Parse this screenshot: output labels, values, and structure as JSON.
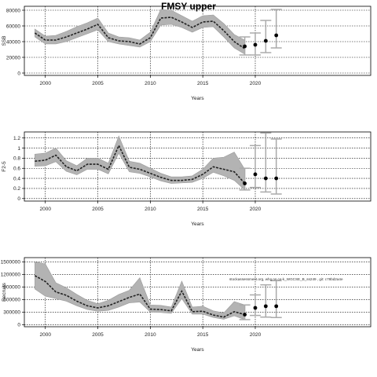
{
  "title": "FMSY upper",
  "note": "stockassessment.org, whg.ns.ce-k_WGCSE_B_ss249 , git: c78bd2a4e",
  "colors": {
    "band": "#b3b3b3",
    "band_edge": "#9a9a9a",
    "line": "#222222",
    "forecast": "#aaaaaa",
    "point": "#000000",
    "grid": "#000000"
  },
  "chart_data": [
    {
      "id": "ssb",
      "type": "line",
      "ylabel": "SSB",
      "xlabel": "Years",
      "xlim": [
        1998,
        2031
      ],
      "ylim": [
        -3000,
        85000
      ],
      "xticks": [
        2000,
        2005,
        2010,
        2015,
        2020
      ],
      "yticks": [
        0,
        20000,
        40000,
        60000,
        80000
      ],
      "x": [
        1999,
        2000,
        2001,
        2002,
        2003,
        2004,
        2005,
        2006,
        2007,
        2008,
        2009,
        2010,
        2011,
        2012,
        2013,
        2014,
        2015,
        2016,
        2017,
        2018,
        2019
      ],
      "y": [
        51000,
        42000,
        42000,
        46000,
        51000,
        56000,
        62000,
        45000,
        41000,
        40000,
        37000,
        45000,
        70000,
        71000,
        65000,
        58000,
        65000,
        66000,
        54000,
        40000,
        31000
      ],
      "lower": [
        46000,
        37000,
        37000,
        40000,
        45000,
        50000,
        55000,
        40000,
        37000,
        35000,
        33000,
        40000,
        61000,
        62000,
        58000,
        52000,
        58000,
        59000,
        46000,
        32000,
        24000
      ],
      "upper": [
        56000,
        47000,
        48000,
        53000,
        59000,
        64000,
        70000,
        51000,
        46000,
        45000,
        42000,
        52000,
        81000,
        80000,
        73000,
        66000,
        73000,
        74000,
        63000,
        49000,
        42000
      ],
      "forecast": [
        {
          "x": 2019,
          "y": 34000,
          "lower": 23000,
          "upper": 46000
        },
        {
          "x": 2020,
          "y": 36000,
          "lower": 23000,
          "upper": 51000
        },
        {
          "x": 2021,
          "y": 41000,
          "lower": 26000,
          "upper": 67000
        },
        {
          "x": 2022,
          "y": 48000,
          "lower": 32000,
          "upper": 81000
        }
      ]
    },
    {
      "id": "fbar",
      "type": "line",
      "ylabel": "F2-5",
      "xlabel": "Years",
      "xlim": [
        1998,
        2031
      ],
      "ylim": [
        -0.05,
        1.32
      ],
      "xticks": [
        2000,
        2005,
        2010,
        2015,
        2020
      ],
      "yticks": [
        0.0,
        0.2,
        0.4,
        0.6,
        0.8,
        1.0,
        1.2
      ],
      "x": [
        1999,
        2000,
        2001,
        2002,
        2003,
        2004,
        2005,
        2006,
        2007,
        2008,
        2009,
        2010,
        2011,
        2012,
        2013,
        2014,
        2015,
        2016,
        2017,
        2018,
        2019
      ],
      "y": [
        0.74,
        0.76,
        0.86,
        0.63,
        0.55,
        0.68,
        0.68,
        0.58,
        1.05,
        0.62,
        0.58,
        0.5,
        0.42,
        0.36,
        0.36,
        0.38,
        0.48,
        0.63,
        0.58,
        0.53,
        0.3
      ],
      "lower": [
        0.64,
        0.65,
        0.73,
        0.54,
        0.47,
        0.58,
        0.58,
        0.49,
        0.9,
        0.53,
        0.5,
        0.43,
        0.35,
        0.3,
        0.31,
        0.32,
        0.4,
        0.52,
        0.45,
        0.36,
        0.17
      ],
      "upper": [
        0.88,
        0.9,
        1.0,
        0.75,
        0.65,
        0.8,
        0.8,
        0.7,
        1.24,
        0.74,
        0.7,
        0.6,
        0.5,
        0.43,
        0.43,
        0.45,
        0.58,
        0.8,
        0.82,
        0.92,
        0.58
      ],
      "forecast": [
        {
          "x": 2019,
          "y": 0.3,
          "lower": 0.17,
          "upper": 0.6
        },
        {
          "x": 2020,
          "y": 0.48,
          "lower": 0.22,
          "upper": 1.05
        },
        {
          "x": 2021,
          "y": 0.4,
          "lower": 0.13,
          "upper": 1.3
        },
        {
          "x": 2022,
          "y": 0.4,
          "lower": 0.09,
          "upper": 1.18
        }
      ]
    },
    {
      "id": "recruitment",
      "type": "line",
      "ylabel": "Recruits",
      "xlabel": "Years",
      "xlim": [
        1998,
        2031
      ],
      "ylim": [
        -50000,
        1600000
      ],
      "xticks": [
        2000,
        2005,
        2010,
        2015,
        2020
      ],
      "yticks": [
        0,
        300000,
        600000,
        900000,
        1200000,
        1500000
      ],
      "ytick_labels": [
        "0",
        "300000",
        "600000",
        "900000",
        "1200000",
        "1500000"
      ],
      "x": [
        1999,
        2000,
        2001,
        2002,
        2003,
        2004,
        2005,
        2006,
        2007,
        2008,
        2009,
        2010,
        2011,
        2012,
        2013,
        2014,
        2015,
        2016,
        2017,
        2018,
        2019
      ],
      "y": [
        1170000,
        1030000,
        780000,
        700000,
        560000,
        450000,
        400000,
        450000,
        550000,
        650000,
        730000,
        370000,
        360000,
        330000,
        800000,
        310000,
        320000,
        230000,
        180000,
        310000,
        240000
      ],
      "lower": [
        850000,
        680000,
        620000,
        560000,
        450000,
        360000,
        320000,
        340000,
        420000,
        520000,
        540000,
        300000,
        290000,
        270000,
        620000,
        250000,
        250000,
        170000,
        130000,
        210000,
        120000
      ],
      "upper": [
        1500000,
        1450000,
        1000000,
        880000,
        720000,
        580000,
        500000,
        580000,
        720000,
        820000,
        1120000,
        470000,
        460000,
        420000,
        1040000,
        420000,
        440000,
        330000,
        280000,
        550000,
        470000
      ],
      "forecast": [
        {
          "x": 2019,
          "y": 240000,
          "lower": 120000,
          "upper": 470000
        },
        {
          "x": 2020,
          "y": 400000,
          "lower": 220000,
          "upper": 710000
        },
        {
          "x": 2021,
          "y": 440000,
          "lower": 180000,
          "upper": 950000
        },
        {
          "x": 2022,
          "y": 440000,
          "lower": 170000,
          "upper": 1050000
        }
      ]
    }
  ]
}
